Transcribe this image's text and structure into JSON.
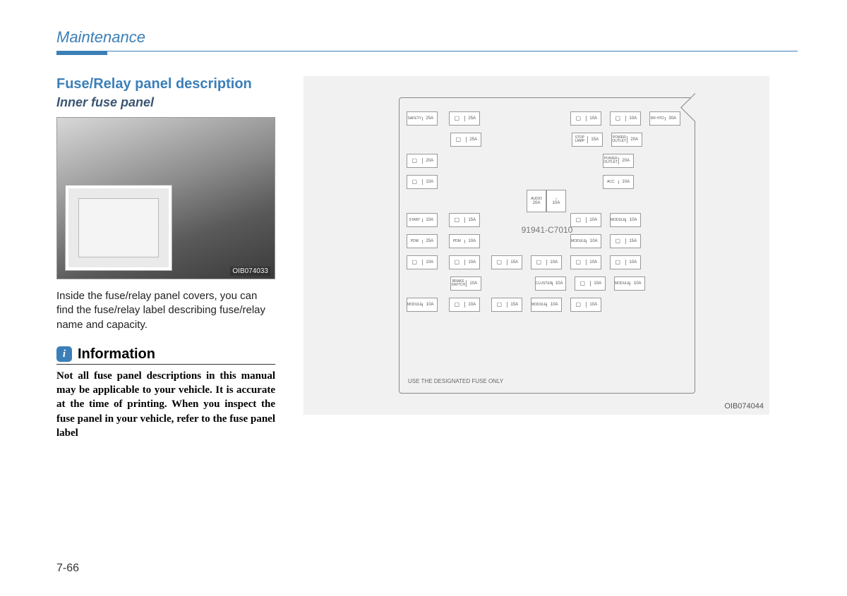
{
  "header": {
    "section": "Maintenance"
  },
  "left": {
    "title": "Fuse/Relay panel description",
    "subtitle": "Inner fuse panel",
    "photo_code": "OIB074033",
    "body": "Inside the fuse/relay panel covers, you can find the fuse/relay label describing fuse/relay name and capacity.",
    "info_icon": "i",
    "info_label": "Information",
    "info_body": "Not all fuse panel descriptions in this manual may be applicable to your vehicle. It is accurate at the time of printing. When you inspect the fuse panel in your vehicle, refer to the fuse panel label"
  },
  "diagram": {
    "code": "OIB074044",
    "part_no": "91941-C7010",
    "footer": "USE THE DESIGNATED FUSE ONLY",
    "rows": [
      [
        {
          "t": "SAFETY",
          "a": "25A"
        },
        {
          "gap": 8
        },
        {
          "t": "",
          "a": "25A"
        },
        {
          "gap": 120
        },
        {
          "t": "",
          "a": "10A"
        },
        {
          "gap": 4
        },
        {
          "t": "",
          "a": "10A"
        },
        {
          "gap": 4
        },
        {
          "t": "RR HTD",
          "a": "30A"
        }
      ],
      [
        {
          "gap": 58
        },
        {
          "t": "",
          "a": "25A"
        },
        {
          "gap": 120
        },
        {
          "t": "STOP LAMP",
          "a": "15A"
        },
        {
          "gap": 4
        },
        {
          "t": "POWER OUTLET",
          "a": "20A"
        }
      ],
      [
        {
          "t": "",
          "a": "20A"
        },
        {
          "gap": 226
        },
        {
          "t": "POWER OUTLET",
          "a": "20A"
        }
      ],
      [
        {
          "t": "",
          "a": "10A"
        },
        {
          "gap": 226
        },
        {
          "t": "ACC",
          "a": "10A"
        }
      ],
      [
        {
          "t": "START",
          "a": "10A"
        },
        {
          "gap": 8
        },
        {
          "t": "",
          "a": "15A"
        },
        {
          "gap": 120
        },
        {
          "t": "",
          "a": "10A"
        },
        {
          "gap": 4
        },
        {
          "t": "MODULE",
          "a": "10A"
        }
      ],
      [
        {
          "t": "PDM",
          "a": "25A"
        },
        {
          "gap": 8
        },
        {
          "t": "PDM",
          "a": "10A"
        },
        {
          "gap": 120
        },
        {
          "t": "MODULE",
          "a": "10A"
        },
        {
          "gap": 4
        },
        {
          "t": "",
          "a": "15A"
        }
      ],
      [
        {
          "t": "",
          "a": "10A"
        },
        {
          "gap": 8
        },
        {
          "t": "",
          "a": "10A"
        },
        {
          "gap": 8
        },
        {
          "t": "",
          "a": "15A"
        },
        {
          "gap": 4
        },
        {
          "t": "",
          "a": "10A"
        },
        {
          "gap": 4
        },
        {
          "t": "",
          "a": "10A"
        },
        {
          "gap": 4
        },
        {
          "t": "",
          "a": "10A"
        }
      ],
      [
        {
          "gap": 58
        },
        {
          "t": "BRAKE SWITCH",
          "a": "10A"
        },
        {
          "gap": 68
        },
        {
          "t": "CLUSTER",
          "a": "10A"
        },
        {
          "gap": 4
        },
        {
          "t": "",
          "a": "10A"
        },
        {
          "gap": 4
        },
        {
          "t": "MODULE",
          "a": "10A"
        }
      ],
      [
        {
          "t": "MODULE",
          "a": "10A"
        },
        {
          "gap": 8
        },
        {
          "t": "",
          "a": "10A"
        },
        {
          "gap": 8
        },
        {
          "t": "",
          "a": "15A"
        },
        {
          "gap": 4
        },
        {
          "t": "MODULE",
          "a": "10A"
        },
        {
          "gap": 4
        },
        {
          "t": "",
          "a": "10A"
        }
      ]
    ],
    "audio": [
      {
        "t": "AUDIO",
        "a": "20A"
      },
      {
        "t": "",
        "a": "10A"
      }
    ]
  },
  "page": "7-66",
  "colors": {
    "accent": "#3b7fb8",
    "subhead": "#3b5573"
  }
}
